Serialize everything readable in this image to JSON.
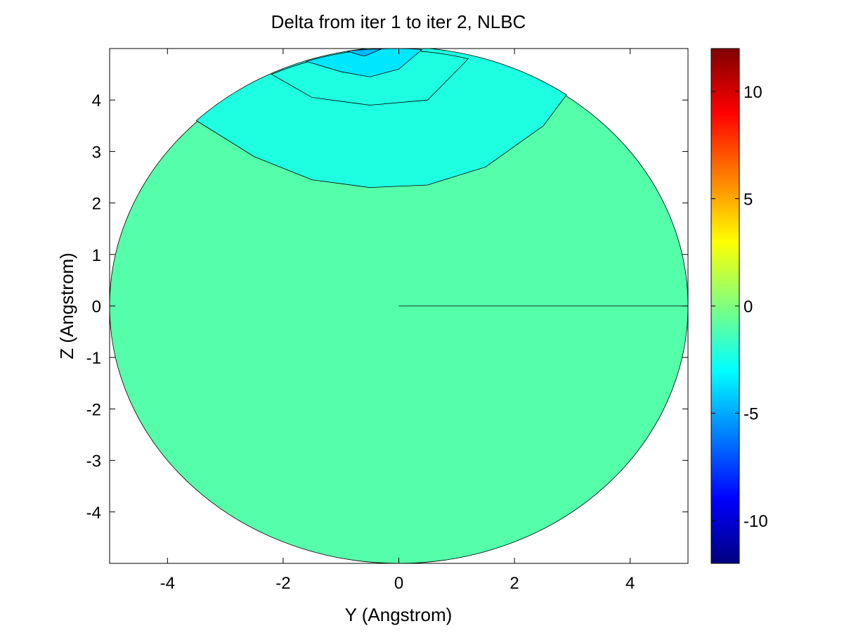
{
  "chart_data": {
    "type": "contour",
    "title": "Delta from iter 1 to iter 2, NLBC",
    "xlabel": "Y (Angstrom)",
    "ylabel": "Z (Angstrom)",
    "xlim": [
      -5,
      5
    ],
    "ylim": [
      -5,
      5
    ],
    "x_ticks": [
      -4,
      -2,
      0,
      2,
      4
    ],
    "x_tick_labels": [
      "-4",
      "-2",
      "0",
      "2",
      "4"
    ],
    "y_ticks": [
      -4,
      -3,
      -2,
      -1,
      0,
      1,
      2,
      3,
      4
    ],
    "y_tick_labels": [
      "-4",
      "-3",
      "-2",
      "-1",
      "0",
      "1",
      "2",
      "3",
      "4"
    ],
    "grid": false,
    "domain": {
      "shape": "circle",
      "center": [
        0,
        0
      ],
      "radius": 5
    },
    "colormap": "jet",
    "colorbar": {
      "range": [
        -12,
        12
      ],
      "ticks": [
        -10,
        -5,
        0,
        5,
        10
      ],
      "tick_labels": [
        "-10",
        "-5",
        "0",
        "5",
        "10"
      ],
      "position": "right"
    },
    "regions": [
      {
        "level": -1.5,
        "color": "#55ffaa",
        "boundary_y": [
          -3.5,
          -2.5,
          -1.5,
          -0.5,
          0.5,
          1.5,
          2.5,
          2.9
        ],
        "boundary_z": [
          3.6,
          2.9,
          2.45,
          2.3,
          2.35,
          2.7,
          3.5,
          4.1
        ]
      },
      {
        "level": -3.5,
        "color": "#1effe1",
        "boundary_y": [
          -2.2,
          -1.5,
          -0.5,
          0.5,
          1.2
        ],
        "boundary_z": [
          4.5,
          4.05,
          3.9,
          4.0,
          4.8
        ]
      },
      {
        "level": -5,
        "color": "#00e6ff",
        "boundary_y": [
          -1.6,
          -1.0,
          -0.5,
          0,
          0.4
        ],
        "boundary_z": [
          4.75,
          4.55,
          4.45,
          4.6,
          4.98
        ]
      },
      {
        "level": -6.5,
        "color": "#00b9ff",
        "boundary_y": [
          -0.9,
          -0.6,
          -0.3
        ],
        "boundary_z": [
          4.95,
          4.85,
          4.99
        ]
      }
    ],
    "seam_line": {
      "y": [
        0,
        5
      ],
      "z": [
        0,
        0
      ]
    }
  }
}
